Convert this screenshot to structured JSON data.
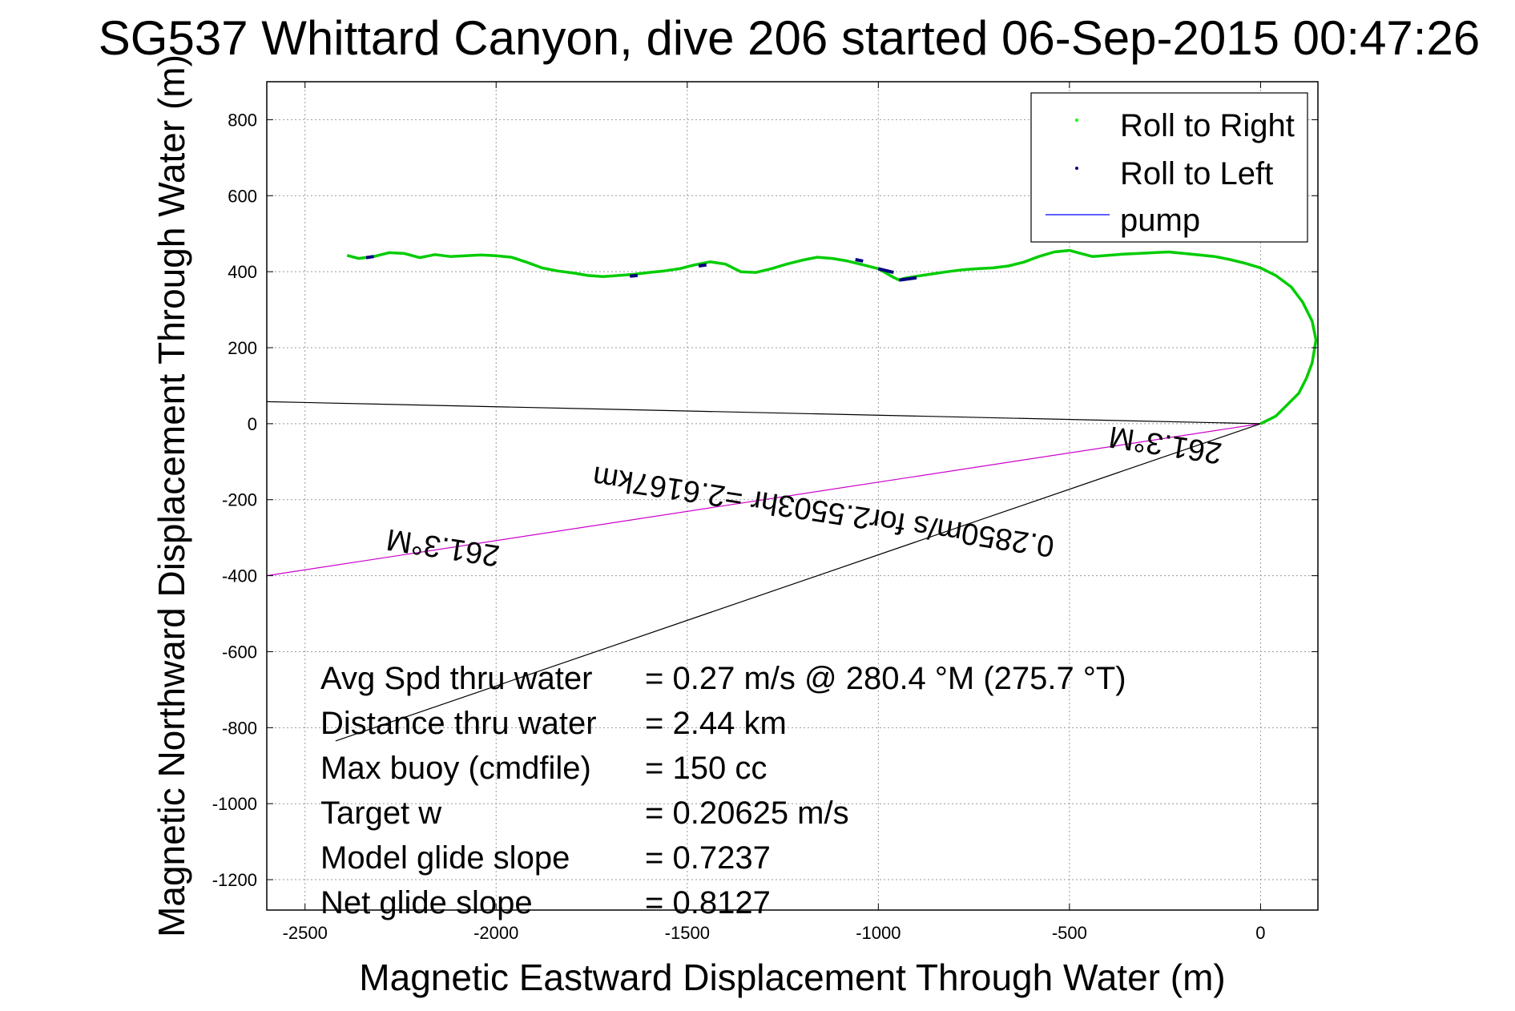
{
  "chart_data": {
    "type": "line",
    "title": "SG537 Whittard Canyon, dive 206 started 06-Sep-2015 00:47:26",
    "xlabel": "Magnetic Eastward Displacement Through Water (m)",
    "ylabel": "Magnetic Northward Displacement Through Water (m)",
    "xlim": [
      -2600,
      150
    ],
    "ylim": [
      -1280,
      900
    ],
    "xticks": [
      -2500,
      -2000,
      -1500,
      -1000,
      -500,
      0
    ],
    "yticks": [
      800,
      600,
      400,
      200,
      0,
      -200,
      -400,
      -600,
      -800,
      -1000,
      -1200
    ],
    "grid": true,
    "legend_position": "top-right",
    "legend": [
      {
        "label": "Roll to Right",
        "color": "#00ff00",
        "marker": "dot"
      },
      {
        "label": "Roll to Left",
        "color": "#000080",
        "marker": "dot"
      },
      {
        "label": "pump",
        "color": "#0000ff",
        "marker": "line"
      }
    ],
    "series": [
      {
        "name": "Roll to Right",
        "color": "#00cc00",
        "x": [
          -2390,
          -2360,
          -2320,
          -2280,
          -2240,
          -2200,
          -2160,
          -2120,
          -2080,
          -2040,
          -2000,
          -1960,
          -1920,
          -1880,
          -1840,
          -1800,
          -1760,
          -1720,
          -1680,
          -1640,
          -1600,
          -1560,
          -1520,
          -1480,
          -1440,
          -1400,
          -1360,
          -1320,
          -1280,
          -1240,
          -1200,
          -1160,
          -1120,
          -1080,
          -1040,
          -1000,
          -960,
          -945,
          -935,
          -900,
          -860,
          -820,
          -780,
          -740,
          -700,
          -660,
          -620,
          -580,
          -540,
          -500,
          -470,
          -440,
          -400,
          -360,
          -320,
          -280,
          -240,
          -200,
          -160,
          -120,
          -80,
          -40,
          0,
          40,
          80,
          110,
          135,
          145,
          135,
          120,
          100,
          70,
          40,
          0
        ],
        "y": [
          443,
          435,
          440,
          450,
          448,
          437,
          445,
          440,
          442,
          444,
          442,
          438,
          425,
          410,
          402,
          397,
          390,
          387,
          390,
          393,
          398,
          402,
          408,
          418,
          426,
          420,
          400,
          398,
          408,
          420,
          430,
          438,
          435,
          428,
          418,
          408,
          385,
          378,
          382,
          388,
          394,
          400,
          405,
          408,
          410,
          415,
          425,
          440,
          452,
          456,
          448,
          440,
          443,
          446,
          448,
          450,
          452,
          448,
          444,
          440,
          432,
          422,
          410,
          390,
          360,
          320,
          270,
          220,
          160,
          120,
          80,
          50,
          20,
          0
        ]
      },
      {
        "name": "Roll to Left",
        "color": "#000080",
        "segments": [
          {
            "x": [
              -2340,
              -2320
            ],
            "y": [
              437,
              440
            ]
          },
          {
            "x": [
              -1650,
              -1630
            ],
            "y": [
              388,
              390
            ]
          },
          {
            "x": [
              -1470,
              -1450
            ],
            "y": [
              415,
              418
            ]
          },
          {
            "x": [
              -1060,
              -1040
            ],
            "y": [
              432,
              428
            ]
          },
          {
            "x": [
              -1000,
              -960
            ],
            "y": [
              408,
              398
            ]
          },
          {
            "x": [
              -945,
              -900
            ],
            "y": [
              378,
              384
            ]
          }
        ]
      }
    ],
    "lines": [
      {
        "name": "heading-line",
        "color": "#cc00cc",
        "x": [
          0,
          -2600
        ],
        "y": [
          0,
          -400
        ]
      },
      {
        "name": "upper-bound-line",
        "color": "#000000",
        "x": [
          0,
          -2600
        ],
        "y": [
          0,
          58
        ]
      },
      {
        "name": "lower-bound-line",
        "color": "#000000",
        "x": [
          0,
          -2420
        ],
        "y": [
          0,
          -835
        ]
      }
    ],
    "annotations": [
      {
        "text": "261.3°M",
        "x": -245,
        "y": -30,
        "angle": 188.7
      },
      {
        "text": "0.2850m/s for2.5503hr =2.6167km",
        "x": -1140,
        "y": -205,
        "angle": 188.7
      },
      {
        "text": "261.3°M",
        "x": -2135,
        "y": -300,
        "angle": 188.7
      }
    ]
  },
  "stats": [
    {
      "label": "Avg Spd thru water",
      "value": "=  0.27 m/s @ 280.4 °M (275.7 °T)"
    },
    {
      "label": "Distance thru water",
      "value": "=  2.44 km"
    },
    {
      "label": "Max buoy (cmdfile)",
      "value": "= 150 cc"
    },
    {
      "label": "Target w",
      "value": "= 0.20625 m/s"
    },
    {
      "label": "Model glide slope",
      "value": "= 0.7237"
    },
    {
      "label": "Net glide slope",
      "value": "= 0.8127"
    }
  ]
}
